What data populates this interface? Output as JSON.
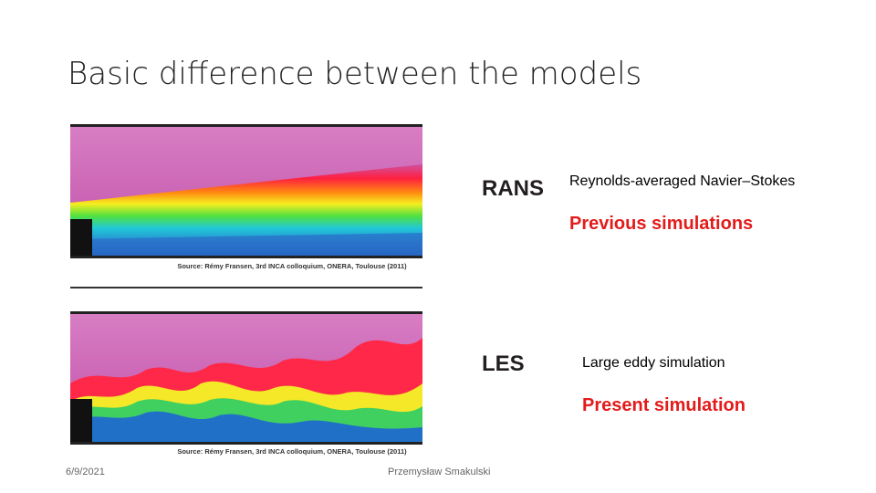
{
  "title": "Basic difference between the models",
  "panels": [
    {
      "label": "RANS",
      "source": "Source: Rémy Fransen, 3rd INCA colloquium, ONERA, Toulouse (2011)",
      "description": "Reynolds-averaged Navier–Stokes",
      "note": "Previous simulations"
    },
    {
      "label": "LES",
      "source": "Source: Rémy Fransen, 3rd INCA colloquium, ONERA, Toulouse (2011)",
      "description": "Large eddy simulation",
      "note": "Present simulation"
    }
  ],
  "footer": {
    "date": "6/9/2021",
    "author": "Przemysław Smakulski"
  }
}
